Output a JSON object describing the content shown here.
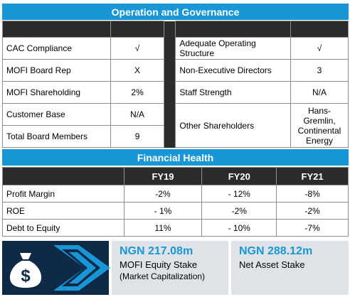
{
  "sections": {
    "operation_title": "Operation and Governance",
    "financial_title": "Financial Health"
  },
  "governance_left": [
    {
      "label": "CAC Compliance",
      "value": "√"
    },
    {
      "label": "MOFI Board Rep",
      "value": "X"
    },
    {
      "label": "MOFI Shareholding",
      "value": "2%"
    },
    {
      "label": "Customer Base",
      "value": "N/A"
    },
    {
      "label": "Total Board Members",
      "value": "9"
    }
  ],
  "governance_right": [
    {
      "label": "Adequate Operating Structure",
      "value": "√"
    },
    {
      "label": "Non-Executive Directors",
      "value": "3"
    },
    {
      "label": "Staff Strength",
      "value": "N/A"
    },
    {
      "label": "Other Shareholders",
      "value": "Hans-Gremlin, Continental Energy"
    }
  ],
  "financial": {
    "headers": [
      "FY19",
      "FY20",
      "FY21"
    ],
    "rows": [
      {
        "label": "Profit Margin",
        "values": [
          "-2%",
          "- 12%",
          "-8%"
        ]
      },
      {
        "label": "ROE",
        "values": [
          "- 1%",
          "-2%",
          "-2%"
        ]
      },
      {
        "label": "Debt to Equity",
        "values": [
          "11%",
          "- 10%",
          "-7%"
        ]
      }
    ]
  },
  "stakes": {
    "equity": {
      "value": "NGN 217.08m",
      "label": "MOFI Equity Stake",
      "sub": "(Market Capitalization)"
    },
    "asset": {
      "value": "NGN 288.12m",
      "label": "Net Asset Stake"
    }
  },
  "icons": {
    "coin": "money-bag-icon",
    "arrow": "chevron-right-icon"
  },
  "colors": {
    "accent": "#1896d6",
    "dark": "#2b2b2b",
    "navy": "#0f2a47",
    "panel": "#dfe3e7"
  }
}
